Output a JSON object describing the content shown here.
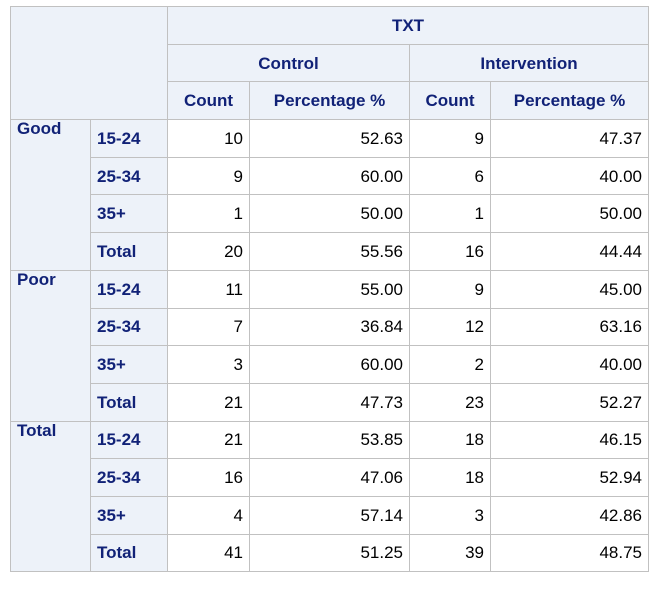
{
  "header": {
    "group_label": "TXT",
    "columns": [
      "Control",
      "Intervention"
    ],
    "subcolumns": [
      "Count",
      "Percentage %",
      "Count",
      "Percentage %"
    ]
  },
  "groups": [
    {
      "label": "Good",
      "rows": [
        {
          "label": "15-24",
          "values": [
            "10",
            "52.63",
            "9",
            "47.37"
          ]
        },
        {
          "label": "25-34",
          "values": [
            "9",
            "60.00",
            "6",
            "40.00"
          ]
        },
        {
          "label": "35+",
          "values": [
            "1",
            "50.00",
            "1",
            "50.00"
          ]
        },
        {
          "label": "Total",
          "values": [
            "20",
            "55.56",
            "16",
            "44.44"
          ]
        }
      ]
    },
    {
      "label": "Poor",
      "rows": [
        {
          "label": "15-24",
          "values": [
            "11",
            "55.00",
            "9",
            "45.00"
          ]
        },
        {
          "label": "25-34",
          "values": [
            "7",
            "36.84",
            "12",
            "63.16"
          ]
        },
        {
          "label": "35+",
          "values": [
            "3",
            "60.00",
            "2",
            "40.00"
          ]
        },
        {
          "label": "Total",
          "values": [
            "21",
            "47.73",
            "23",
            "52.27"
          ]
        }
      ]
    },
    {
      "label": "Total",
      "rows": [
        {
          "label": "15-24",
          "values": [
            "21",
            "53.85",
            "18",
            "46.15"
          ]
        },
        {
          "label": "25-34",
          "values": [
            "16",
            "47.06",
            "18",
            "52.94"
          ]
        },
        {
          "label": "35+",
          "values": [
            "4",
            "57.14",
            "3",
            "42.86"
          ]
        },
        {
          "label": "Total",
          "values": [
            "41",
            "51.25",
            "39",
            "48.75"
          ]
        }
      ]
    }
  ],
  "colors": {
    "header_bg": "#edf2f9",
    "header_text": "#112277",
    "border": "#c1c1c1"
  }
}
